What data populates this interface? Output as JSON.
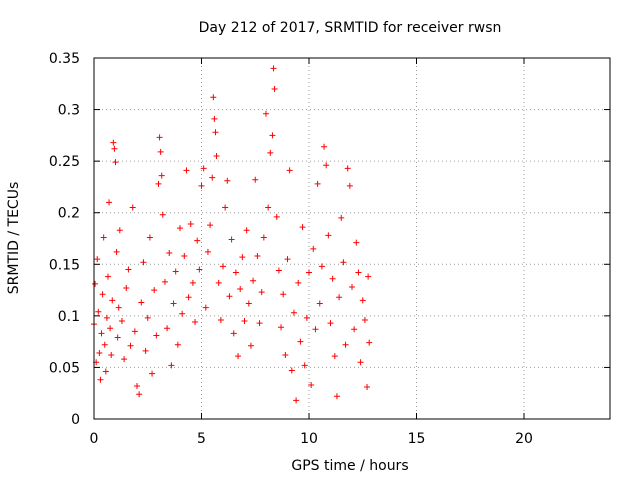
{
  "chart_data": {
    "type": "scatter",
    "title": "Day 212 of 2017, SRMTID for receiver rwsn",
    "xlabel": "GPS time / hours",
    "ylabel": "SRMTID / TECUs",
    "xlim": [
      0,
      24
    ],
    "ylim": [
      0,
      0.35
    ],
    "xticks": [
      0,
      5,
      10,
      15,
      20
    ],
    "xtick_labels": [
      "0",
      "5",
      "10",
      "15",
      "20"
    ],
    "yticks": [
      0,
      0.05,
      0.1,
      0.15,
      0.2,
      0.25,
      0.3,
      0.35
    ],
    "ytick_labels": [
      "0",
      "0.05",
      "0.1",
      "0.15",
      "0.2",
      "0.25",
      "0.3",
      "0.35"
    ],
    "grid": true,
    "marker": "+",
    "color": "#ff0000",
    "series": [
      {
        "name": "SRMTID",
        "points": [
          [
            0.0,
            0.092
          ],
          [
            0.05,
            0.131
          ],
          [
            0.1,
            0.055
          ],
          [
            0.15,
            0.155
          ],
          [
            0.2,
            0.104
          ],
          [
            0.25,
            0.064
          ],
          [
            0.3,
            0.038
          ],
          [
            0.35,
            0.083
          ],
          [
            0.4,
            0.121
          ],
          [
            0.45,
            0.176
          ],
          [
            0.5,
            0.072
          ],
          [
            0.55,
            0.046
          ],
          [
            0.6,
            0.098
          ],
          [
            0.65,
            0.138
          ],
          [
            0.7,
            0.21
          ],
          [
            0.75,
            0.088
          ],
          [
            0.8,
            0.062
          ],
          [
            0.85,
            0.115
          ],
          [
            0.9,
            0.268
          ],
          [
            0.95,
            0.262
          ],
          [
            1.0,
            0.249
          ],
          [
            1.05,
            0.162
          ],
          [
            1.1,
            0.079
          ],
          [
            1.15,
            0.108
          ],
          [
            1.2,
            0.183
          ],
          [
            1.3,
            0.095
          ],
          [
            1.4,
            0.058
          ],
          [
            1.5,
            0.127
          ],
          [
            1.6,
            0.145
          ],
          [
            1.7,
            0.071
          ],
          [
            1.8,
            0.205
          ],
          [
            1.9,
            0.085
          ],
          [
            2.0,
            0.032
          ],
          [
            2.1,
            0.024
          ],
          [
            2.2,
            0.113
          ],
          [
            2.3,
            0.152
          ],
          [
            2.4,
            0.066
          ],
          [
            2.5,
            0.098
          ],
          [
            2.6,
            0.176
          ],
          [
            2.7,
            0.044
          ],
          [
            2.8,
            0.125
          ],
          [
            2.9,
            0.081
          ],
          [
            3.0,
            0.228
          ],
          [
            3.05,
            0.273
          ],
          [
            3.1,
            0.259
          ],
          [
            3.15,
            0.236
          ],
          [
            3.2,
            0.198
          ],
          [
            3.3,
            0.133
          ],
          [
            3.4,
            0.088
          ],
          [
            3.5,
            0.161
          ],
          [
            3.6,
            0.052
          ],
          [
            3.7,
            0.112
          ],
          [
            3.8,
            0.143
          ],
          [
            3.9,
            0.072
          ],
          [
            4.0,
            0.185
          ],
          [
            4.1,
            0.102
          ],
          [
            4.2,
            0.158
          ],
          [
            4.3,
            0.241
          ],
          [
            4.4,
            0.118
          ],
          [
            4.5,
            0.189
          ],
          [
            4.6,
            0.132
          ],
          [
            4.7,
            0.094
          ],
          [
            4.8,
            0.173
          ],
          [
            4.9,
            0.145
          ],
          [
            5.0,
            0.226
          ],
          [
            5.1,
            0.243
          ],
          [
            5.2,
            0.108
          ],
          [
            5.3,
            0.162
          ],
          [
            5.4,
            0.188
          ],
          [
            5.5,
            0.234
          ],
          [
            5.55,
            0.312
          ],
          [
            5.6,
            0.291
          ],
          [
            5.65,
            0.278
          ],
          [
            5.7,
            0.255
          ],
          [
            5.8,
            0.132
          ],
          [
            5.9,
            0.096
          ],
          [
            6.0,
            0.148
          ],
          [
            6.1,
            0.205
          ],
          [
            6.2,
            0.231
          ],
          [
            6.3,
            0.119
          ],
          [
            6.4,
            0.174
          ],
          [
            6.5,
            0.083
          ],
          [
            6.6,
            0.142
          ],
          [
            6.7,
            0.061
          ],
          [
            6.8,
            0.126
          ],
          [
            6.9,
            0.157
          ],
          [
            7.0,
            0.095
          ],
          [
            7.1,
            0.183
          ],
          [
            7.2,
            0.112
          ],
          [
            7.3,
            0.071
          ],
          [
            7.4,
            0.134
          ],
          [
            7.5,
            0.232
          ],
          [
            7.6,
            0.158
          ],
          [
            7.7,
            0.093
          ],
          [
            7.8,
            0.123
          ],
          [
            7.9,
            0.176
          ],
          [
            8.0,
            0.296
          ],
          [
            8.1,
            0.205
          ],
          [
            8.2,
            0.258
          ],
          [
            8.3,
            0.275
          ],
          [
            8.35,
            0.34
          ],
          [
            8.4,
            0.32
          ],
          [
            8.5,
            0.196
          ],
          [
            8.6,
            0.144
          ],
          [
            8.7,
            0.089
          ],
          [
            8.8,
            0.121
          ],
          [
            8.9,
            0.062
          ],
          [
            9.0,
            0.155
          ],
          [
            9.1,
            0.241
          ],
          [
            9.2,
            0.047
          ],
          [
            9.3,
            0.103
          ],
          [
            9.4,
            0.018
          ],
          [
            9.5,
            0.132
          ],
          [
            9.6,
            0.075
          ],
          [
            9.7,
            0.186
          ],
          [
            9.8,
            0.052
          ],
          [
            9.9,
            0.098
          ],
          [
            10.0,
            0.142
          ],
          [
            10.1,
            0.033
          ],
          [
            10.2,
            0.165
          ],
          [
            10.3,
            0.087
          ],
          [
            10.4,
            0.228
          ],
          [
            10.5,
            0.112
          ],
          [
            10.6,
            0.148
          ],
          [
            10.7,
            0.264
          ],
          [
            10.8,
            0.246
          ],
          [
            10.9,
            0.178
          ],
          [
            11.0,
            0.093
          ],
          [
            11.1,
            0.136
          ],
          [
            11.2,
            0.061
          ],
          [
            11.3,
            0.022
          ],
          [
            11.4,
            0.118
          ],
          [
            11.5,
            0.195
          ],
          [
            11.6,
            0.152
          ],
          [
            11.7,
            0.072
          ],
          [
            11.8,
            0.243
          ],
          [
            11.9,
            0.226
          ],
          [
            12.0,
            0.128
          ],
          [
            12.1,
            0.087
          ],
          [
            12.2,
            0.171
          ],
          [
            12.3,
            0.142
          ],
          [
            12.4,
            0.055
          ],
          [
            12.5,
            0.115
          ],
          [
            12.6,
            0.096
          ],
          [
            12.7,
            0.031
          ],
          [
            12.75,
            0.138
          ],
          [
            12.8,
            0.074
          ]
        ]
      }
    ]
  }
}
